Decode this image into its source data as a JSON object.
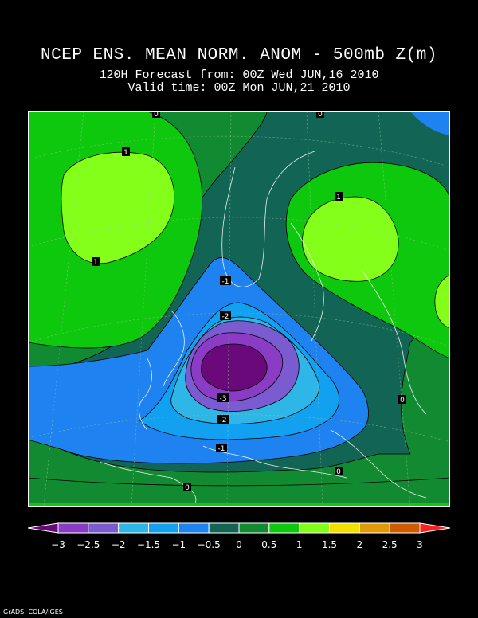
{
  "header": {
    "title": "NCEP ENS. MEAN NORM. ANOM - 500mb Z(m)",
    "forecast_line": "120H Forecast from: 00Z Wed JUN,16 2010",
    "valid_line": "Valid time: 00Z Mon JUN,21 2010"
  },
  "colorbar": {
    "colors": [
      "#6a0a7a",
      "#8a3cc4",
      "#7a5cd0",
      "#2eb6e6",
      "#12a0f0",
      "#1e82f0",
      "#126454",
      "#128a32",
      "#0ec80e",
      "#84ff1a",
      "#f4e000",
      "#e09a08",
      "#d05a00",
      "#ff2020"
    ],
    "tick_labels": [
      "-3",
      "-2.5",
      "-2",
      "-1.5",
      "-1",
      "-0.5",
      "0",
      "0.5",
      "1",
      "1.5",
      "2",
      "2.5",
      "3"
    ]
  },
  "map": {
    "contour_labels": [
      "1",
      "1",
      "1",
      "-1",
      "-2",
      "-3",
      "-2",
      "-1",
      "0",
      "0",
      "0",
      "0",
      "0"
    ]
  },
  "footer": {
    "credit": "GrADS: COLA/IGES"
  }
}
